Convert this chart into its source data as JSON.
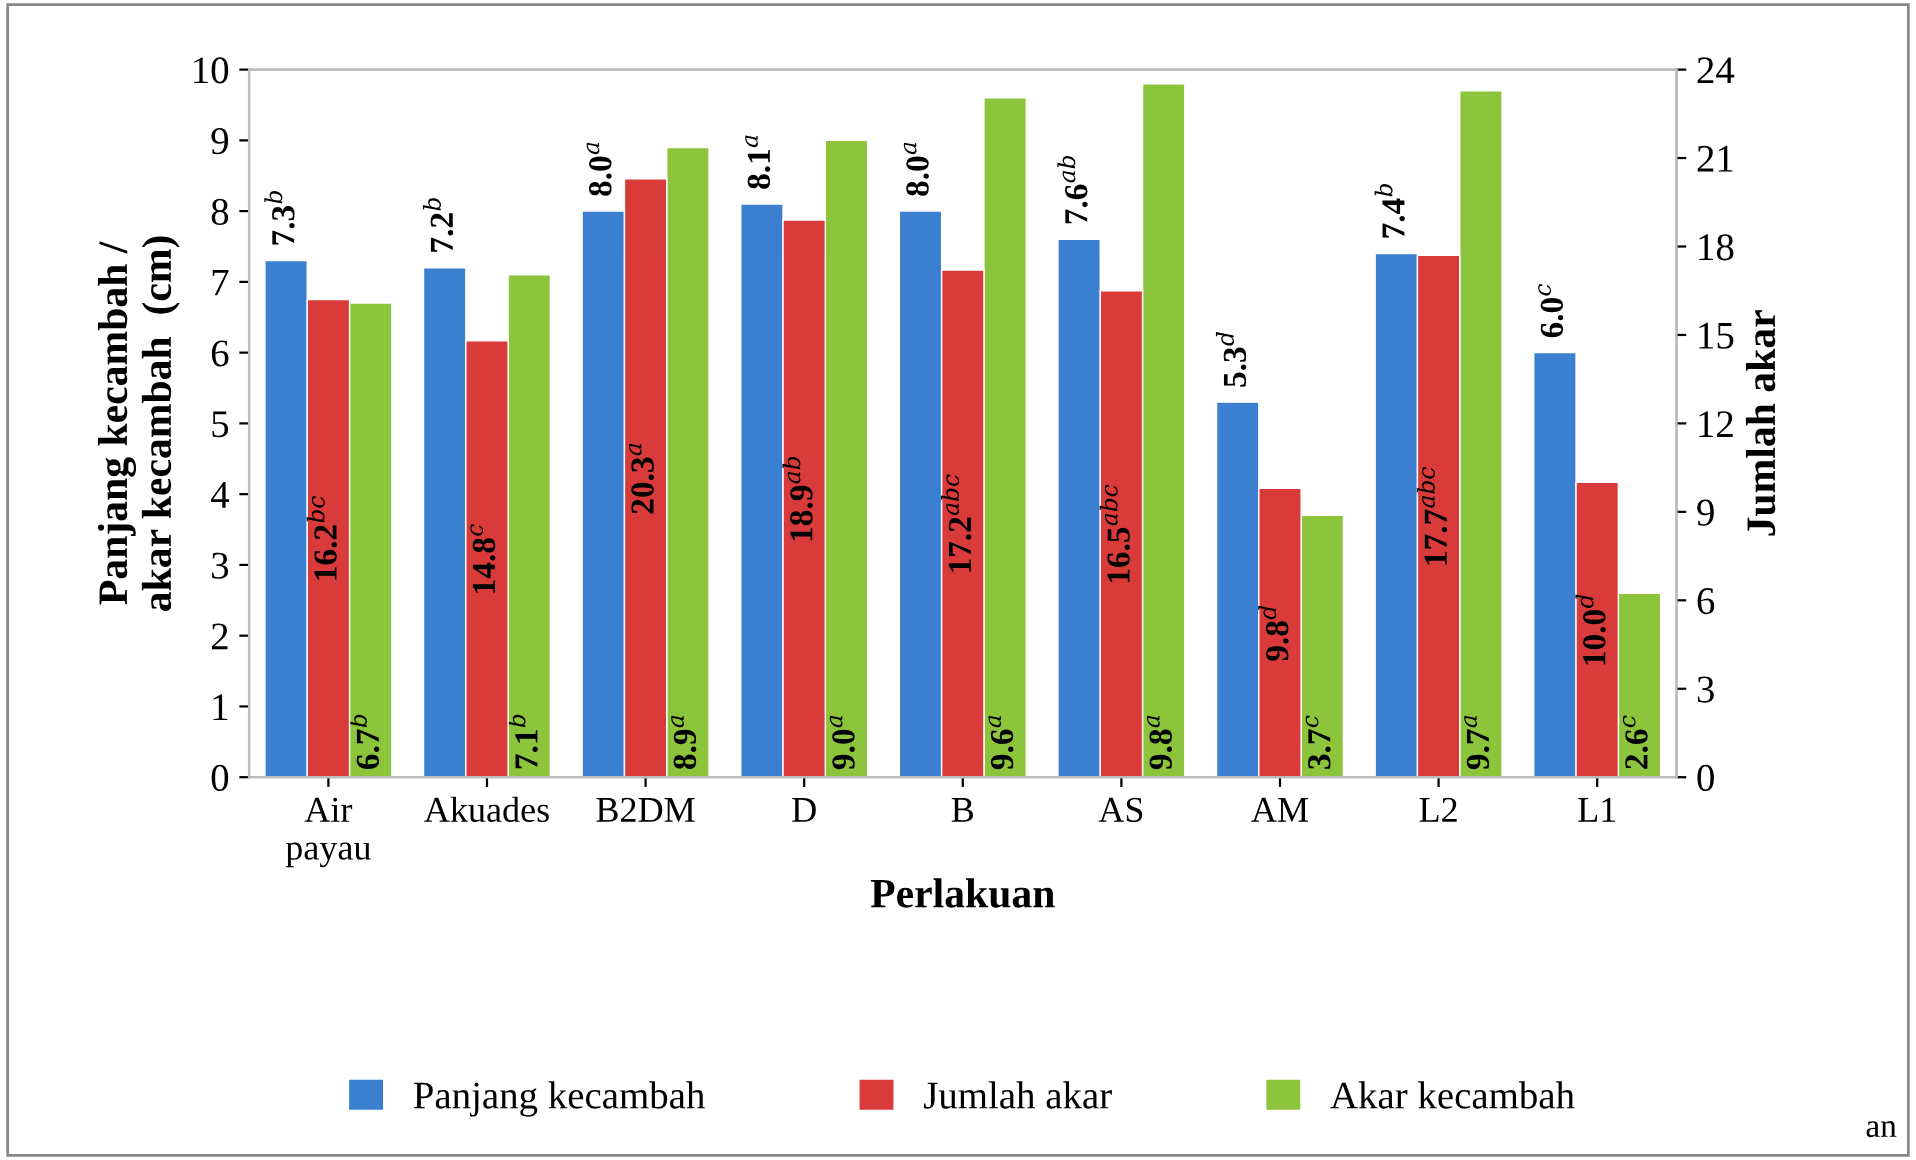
{
  "chart_data": {
    "type": "bar",
    "xlabel": "Perlakuan",
    "ylabel": "Panjang kecambah /\nakar kecambah  (cm)",
    "y2label": "Jumlah akar",
    "categories": [
      "Air\npayau",
      "Akuades",
      "B2DM",
      "D",
      "B",
      "AS",
      "AM",
      "L2",
      "L1"
    ],
    "series": [
      {
        "name": "Panjang kecambah",
        "color": "#3a7fd0",
        "values": [
          7.3,
          7.2,
          8.0,
          8.1,
          8.0,
          7.6,
          5.3,
          7.4,
          6.0
        ],
        "value_labels": [
          "7.3$^{b}$",
          "7.2$^{b}$",
          "8.0$^{a}$",
          "8.1$^{a}$",
          "8.0$^{a}$",
          "7.6$^{ab}$",
          "5.3$^{d}$",
          "7.4$^{b}$",
          "6.0$^{c}$"
        ]
      },
      {
        "name": "Jumlah akar",
        "color": "#d93a3a",
        "axis": "y2",
        "values": [
          16.2,
          14.8,
          20.3,
          18.9,
          17.2,
          16.5,
          9.8,
          17.7,
          10.0
        ],
        "value_labels": [
          "16.2$^{bc}$",
          "14.8$^{c}$",
          "20.3$^{a}$",
          "18.9$^{ab}$",
          "17.2$^{abc}$",
          "16.5$^{abc}$",
          "9.8$^{d}$",
          "17.7$^{abc}$",
          "10.0$^{d}$"
        ]
      },
      {
        "name": "Akar kecambah",
        "color": "#8cc43c",
        "values": [
          6.7,
          7.1,
          8.9,
          9.0,
          9.6,
          9.8,
          3.7,
          9.7,
          2.6
        ],
        "value_labels": [
          "6.7$^{b}$",
          "7.1$^{b}$",
          "8.9$^{a}$",
          "9.0$^{a}$",
          "9.6$^{a}$",
          "9.8$^{a}$",
          "3.7$^{c}$",
          "9.7$^{a}$",
          "2.6$^{c}$"
        ]
      }
    ],
    "ylim": [
      0,
      10
    ],
    "yticks": [
      0,
      1,
      2,
      3,
      4,
      5,
      6,
      7,
      8,
      9,
      10
    ],
    "y2lim": [
      0,
      24
    ],
    "y2ticks": [
      0,
      3,
      6,
      9,
      12,
      15,
      18,
      21,
      24
    ],
    "legend": "bottom",
    "grid": false,
    "annotations": [
      "an"
    ]
  }
}
